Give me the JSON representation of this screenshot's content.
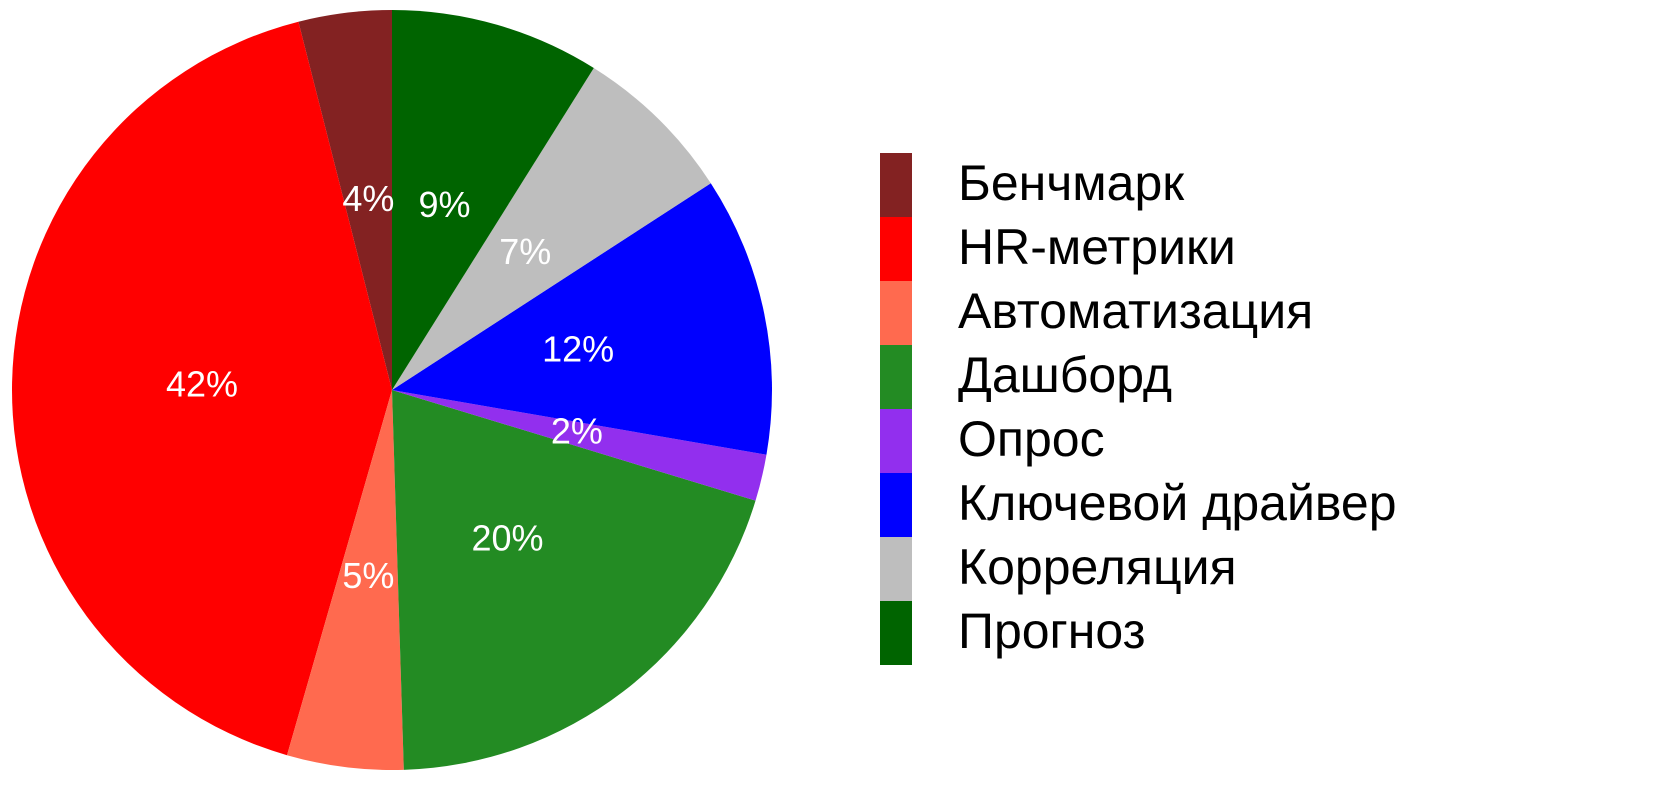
{
  "chart_data": {
    "type": "pie",
    "categories": [
      "Бенчмарк",
      "HR-метрики",
      "Автоматизация",
      "Дашборд",
      "Опрос",
      "Ключевой драйвер",
      "Корреляция",
      "Прогноз"
    ],
    "values": [
      4,
      42,
      5,
      20,
      2,
      12,
      7,
      9
    ],
    "value_labels": [
      "4%",
      "42%",
      "5%",
      "20%",
      "2%",
      "12%",
      "7%",
      "9%"
    ],
    "colors": [
      "#832222",
      "#ff0000",
      "#ff6a4f",
      "#238b23",
      "#922fee",
      "#0000ff",
      "#bebebe",
      "#006400"
    ],
    "direction": "counterclockwise",
    "legend": "right"
  }
}
